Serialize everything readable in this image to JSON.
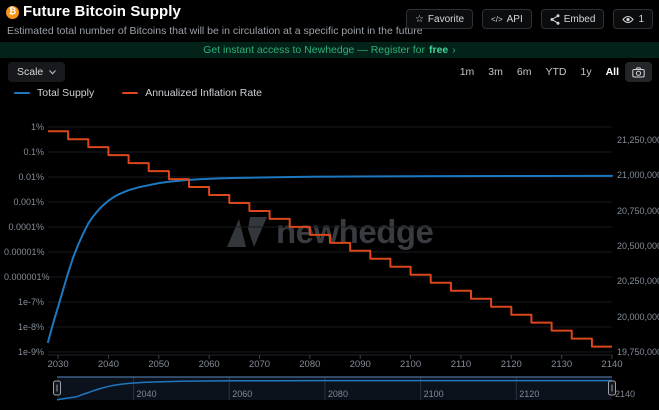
{
  "header": {
    "title": "Future Bitcoin Supply",
    "bitcoin_symbol": "₿",
    "subtitle": "Estimated total number of Bitcoins that will be in circulation at a specific point in the future",
    "actions": [
      {
        "icon": "star-icon",
        "label": "Favorite"
      },
      {
        "icon": "code-icon",
        "label": "API"
      },
      {
        "icon": "share-icon",
        "label": "Embed"
      },
      {
        "icon": "eye-icon",
        "label": "1"
      }
    ]
  },
  "banner": {
    "text": "Get instant access to Newhedge — Register for",
    "highlight": "free",
    "arrow": "›"
  },
  "toolbar": {
    "scale_label": "Scale",
    "ranges": [
      "1m",
      "3m",
      "6m",
      "YTD",
      "1y",
      "All"
    ],
    "active_range": "All",
    "camera_icon": "camera-icon"
  },
  "legend": [
    {
      "label": "Total Supply",
      "color": "#1e78c0"
    },
    {
      "label": "Annualized Inflation Rate",
      "color": "#d9471b"
    }
  ],
  "watermark": "newhedge",
  "chart_data": {
    "type": "line",
    "title": "Future Bitcoin Supply",
    "x_range": [
      2028,
      2140
    ],
    "x_ticks": [
      2030,
      2040,
      2050,
      2060,
      2070,
      2080,
      2090,
      2100,
      2110,
      2120,
      2130,
      2140
    ],
    "left_axis": {
      "series": "Annualized Inflation Rate",
      "scale": "log",
      "tick_labels": [
        "1%",
        "0.1%",
        "0.01%",
        "0.001%",
        "0.0001%",
        "0.00001%",
        "0.000001%",
        "1e-7%",
        "1e-8%",
        "1e-9%"
      ]
    },
    "right_axis": {
      "series": "Total Supply",
      "scale": "linear",
      "tick_values": [
        21250000,
        21000000,
        20750000,
        20500000,
        20250000,
        20000000,
        19750000
      ],
      "tick_labels": [
        "21,250,000",
        "21,000,000",
        "20,750,000",
        "20,500,000",
        "20,250,000",
        "20,000,000",
        "19,750,000"
      ]
    },
    "series": [
      {
        "name": "Total Supply",
        "axis": "right",
        "color": "#1e78c0",
        "points": [
          [
            2028,
            19820000
          ],
          [
            2029,
            19950000
          ],
          [
            2030,
            20070000
          ],
          [
            2031,
            20190000
          ],
          [
            2032,
            20310000
          ],
          [
            2033,
            20420000
          ],
          [
            2034,
            20510000
          ],
          [
            2035,
            20590000
          ],
          [
            2036,
            20660000
          ],
          [
            2037,
            20710000
          ],
          [
            2038,
            20755000
          ],
          [
            2039,
            20790000
          ],
          [
            2040,
            20820000
          ],
          [
            2041,
            20845000
          ],
          [
            2042,
            20865000
          ],
          [
            2043,
            20880000
          ],
          [
            2044,
            20895000
          ],
          [
            2046,
            20915000
          ],
          [
            2048,
            20930000
          ],
          [
            2050,
            20945000
          ],
          [
            2052,
            20955000
          ],
          [
            2055,
            20965000
          ],
          [
            2058,
            20972000
          ],
          [
            2062,
            20978000
          ],
          [
            2066,
            20982000
          ],
          [
            2070,
            20985000
          ],
          [
            2080,
            20990000
          ],
          [
            2100,
            20993000
          ],
          [
            2120,
            20995000
          ],
          [
            2140,
            20996000
          ]
        ]
      },
      {
        "name": "Annualized Inflation Rate",
        "axis": "left",
        "color": "#d9471b",
        "step": true,
        "points": [
          [
            2028,
            0.68
          ],
          [
            2032,
            0.3261
          ],
          [
            2036,
            0.1564
          ],
          [
            2040,
            0.07502
          ],
          [
            2044,
            0.03598
          ],
          [
            2048,
            0.01726
          ],
          [
            2052,
            0.008277
          ],
          [
            2056,
            0.00397
          ],
          [
            2060,
            0.001904
          ],
          [
            2064,
            0.0009132
          ],
          [
            2068,
            0.000438
          ],
          [
            2072,
            0.0002101
          ],
          [
            2076,
            0.00010076
          ],
          [
            2080,
            4.833e-05
          ],
          [
            2084,
            2.318e-05
          ],
          [
            2088,
            1.1118e-05
          ],
          [
            2092,
            5.332e-06
          ],
          [
            2096,
            2.5574e-06
          ],
          [
            2100,
            1.2266e-06
          ],
          [
            2104,
            5.883e-07
          ],
          [
            2108,
            2.8216e-07
          ],
          [
            2112,
            1.3533e-07
          ],
          [
            2116,
            6.491e-08
          ],
          [
            2120,
            3.113e-08
          ],
          [
            2124,
            1.4931e-08
          ],
          [
            2128,
            7.161e-09
          ],
          [
            2132,
            3.435e-09
          ],
          [
            2136,
            1.647e-09
          ]
        ]
      }
    ],
    "navigator": {
      "x_range": [
        2024,
        2140
      ],
      "tick_labels": [
        "2040",
        "2060",
        "2080",
        "2100",
        "2120",
        "2140"
      ],
      "tick_years": [
        2040,
        2060,
        2080,
        2100,
        2120,
        2140
      ]
    }
  }
}
